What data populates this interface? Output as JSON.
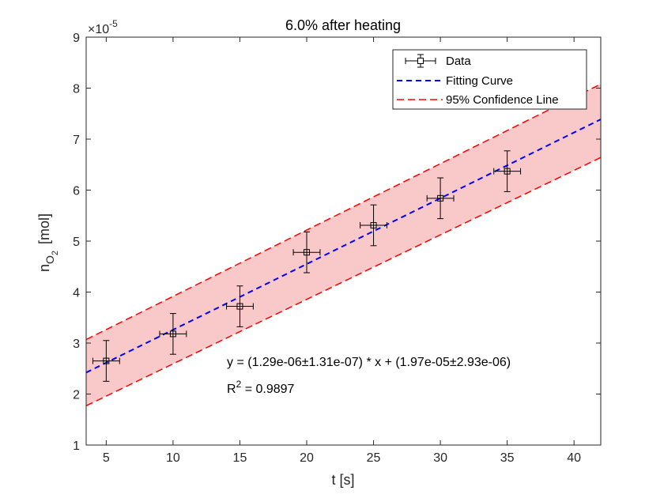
{
  "chart_data": {
    "type": "scatter",
    "title": "6.0% after heating",
    "xlabel": "t [s]",
    "ylabel_main": "n",
    "ylabel_subscript": "O",
    "ylabel_subsubscript": "2",
    "ylabel_unit": "[mol]",
    "y_exponent_base": "×10",
    "y_exponent": "-5",
    "xlim": [
      3.5,
      42
    ],
    "ylim": [
      1,
      9
    ],
    "xticks": [
      5,
      10,
      15,
      20,
      25,
      30,
      35,
      40
    ],
    "yticks": [
      1,
      2,
      3,
      4,
      5,
      6,
      7,
      8,
      9
    ],
    "grid": false,
    "legend_position": "top-right",
    "series": [
      {
        "name": "Data",
        "style": "markers-with-errorbars",
        "marker": "square",
        "color": "#000000",
        "x": [
          5,
          10,
          15,
          20,
          25,
          30,
          35
        ],
        "y": [
          2.65,
          3.18,
          3.72,
          4.78,
          5.31,
          5.84,
          6.37
        ],
        "x_error": [
          1,
          1,
          1,
          1,
          1,
          1,
          1
        ],
        "y_error": [
          0.4,
          0.4,
          0.4,
          0.4,
          0.4,
          0.4,
          0.4
        ]
      },
      {
        "name": "Fitting Curve",
        "style": "dashed-line",
        "color": "#0000ff",
        "slope": 0.129,
        "intercept": 1.97
      },
      {
        "name": "95% Confidence Line",
        "style": "dashed-line",
        "color": "#ff0000",
        "fill_color": "#f9c8c8",
        "upper": {
          "x": [
            3.5,
            42
          ],
          "y": [
            3.07,
            8.08
          ]
        },
        "lower": {
          "x": [
            3.5,
            42
          ],
          "y": [
            1.77,
            6.64
          ]
        }
      }
    ],
    "annotations": {
      "equation": "y = (1.29e-06±1.31e-07) * x + (1.97e-05±2.93e-06)",
      "r2_label": "R",
      "r2_exp": "2",
      "r2_value": " = 0.9897"
    }
  }
}
